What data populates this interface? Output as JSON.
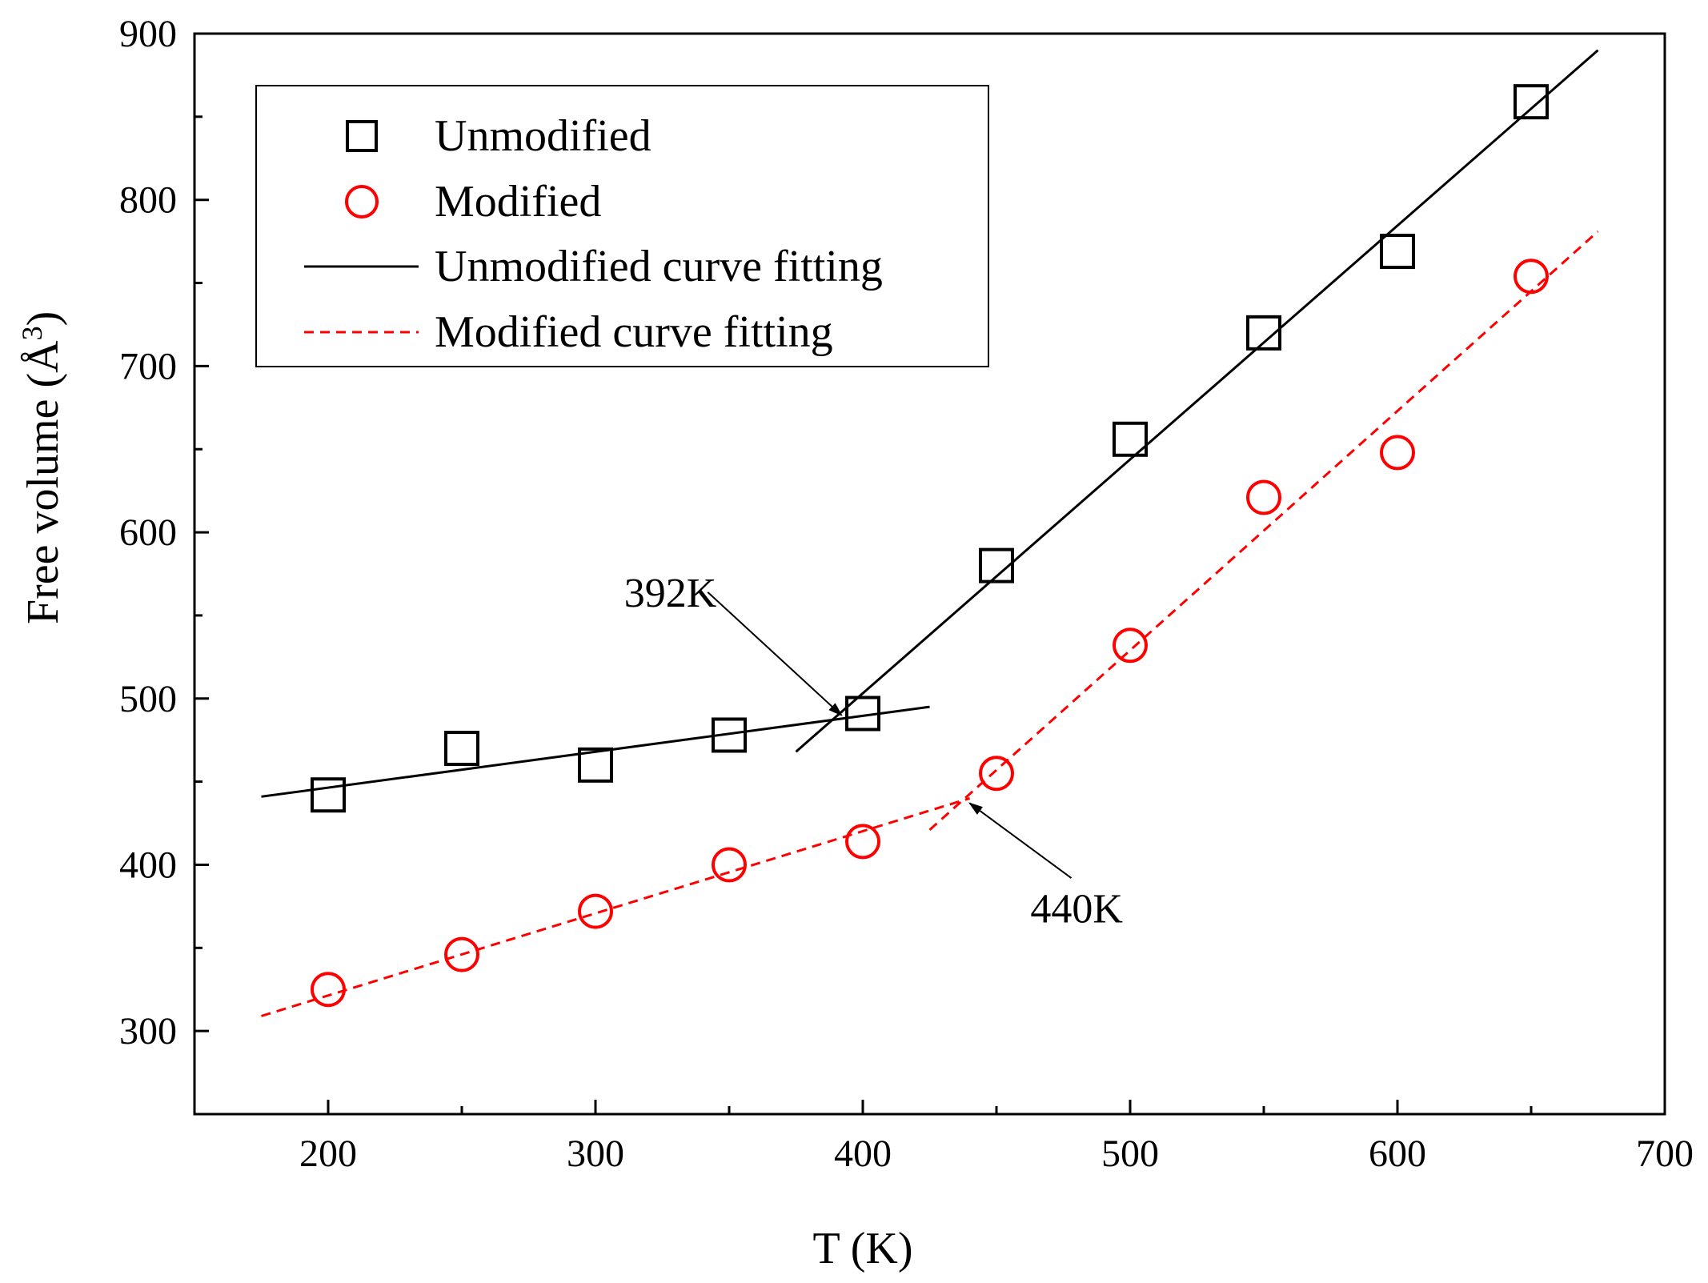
{
  "chart_data": {
    "type": "scatter",
    "title": "",
    "xlabel": "T (K)",
    "ylabel_main": "Free volume (",
    "ylabel_unit": "Å",
    "ylabel_exp": "3",
    "ylabel_close": ")",
    "xlim": [
      150,
      700
    ],
    "ylim": [
      250,
      900
    ],
    "xticks": [
      200,
      300,
      400,
      500,
      600,
      700
    ],
    "yticks": [
      300,
      400,
      500,
      600,
      700,
      800,
      900
    ],
    "legend_position": "top-left",
    "series": [
      {
        "name": "Unmodified",
        "marker": "square",
        "color": "#000000",
        "x": [
          200,
          250,
          300,
          350,
          400,
          450,
          500,
          550,
          600,
          650
        ],
        "y": [
          442,
          470,
          460,
          478,
          491,
          580,
          656,
          720,
          769,
          859
        ]
      },
      {
        "name": "Modified",
        "marker": "circle",
        "color": "#ff0000",
        "x": [
          200,
          250,
          300,
          350,
          400,
          450,
          500,
          550,
          600,
          650
        ],
        "y": [
          325,
          346,
          372,
          400,
          414,
          455,
          532,
          621,
          648,
          754
        ]
      }
    ],
    "fits": [
      {
        "name": "Unmodified curve fitting",
        "style": "solid",
        "color": "#000000",
        "segments": [
          {
            "x1": 175,
            "y1": 441,
            "x2": 425,
            "y2": 495
          },
          {
            "x1": 375,
            "y1": 468,
            "x2": 675,
            "y2": 890
          }
        ]
      },
      {
        "name": "Modified curve fitting",
        "style": "dashed",
        "color": "#ff0000",
        "segments": [
          {
            "x1": 175,
            "y1": 309,
            "x2": 440,
            "y2": 440
          },
          {
            "x1": 425,
            "y1": 421,
            "x2": 675,
            "y2": 781
          }
        ]
      }
    ],
    "annotations": [
      {
        "text": "392K",
        "label_x": 328,
        "label_y": 564,
        "tail_x": 342,
        "tail_y": 564,
        "head_x": 392,
        "head_y": 490
      },
      {
        "text": "440K",
        "label_x": 480,
        "label_y": 374,
        "tail_x": 478,
        "tail_y": 392,
        "head_x": 440,
        "head_y": 437
      }
    ]
  }
}
